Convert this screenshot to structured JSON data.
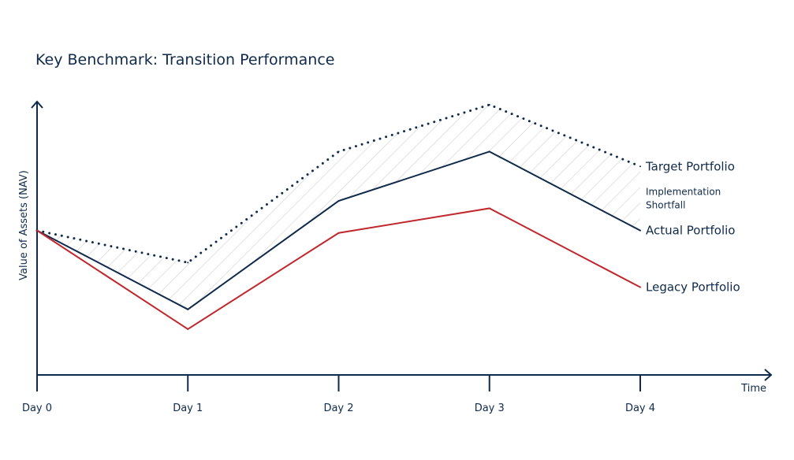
{
  "chart_data": {
    "type": "line",
    "title": "Key Benchmark: Transition Performance",
    "xlabel": "Time",
    "ylabel": "Value of Assets (NAV)",
    "categories": [
      "Day 0",
      "Day 1",
      "Day 2",
      "Day 3",
      "Day 4"
    ],
    "ylim": [
      0,
      100
    ],
    "grid": false,
    "legend": "inline-right",
    "series": [
      {
        "name": "Target Portfolio",
        "values": [
          49,
          36,
          81,
          100,
          75
        ],
        "style": "dotted",
        "color": "#0f2a4a"
      },
      {
        "name": "Actual Portfolio",
        "values": [
          49,
          17,
          61,
          81,
          49
        ],
        "style": "solid",
        "color": "#0f2a4a"
      },
      {
        "name": "Legacy Portfolio",
        "values": [
          49,
          9,
          48,
          58,
          26
        ],
        "style": "solid",
        "color": "#c0282d"
      }
    ],
    "annotations": [
      {
        "text_lines": [
          "Implementation",
          "Shortfall"
        ],
        "between": [
          "Target Portfolio",
          "Actual Portfolio"
        ],
        "fill": "hatched"
      }
    ]
  },
  "colors": {
    "navy": "#0f2a4a",
    "red": "#c0282d",
    "hatch": "#d0d0d0"
  }
}
